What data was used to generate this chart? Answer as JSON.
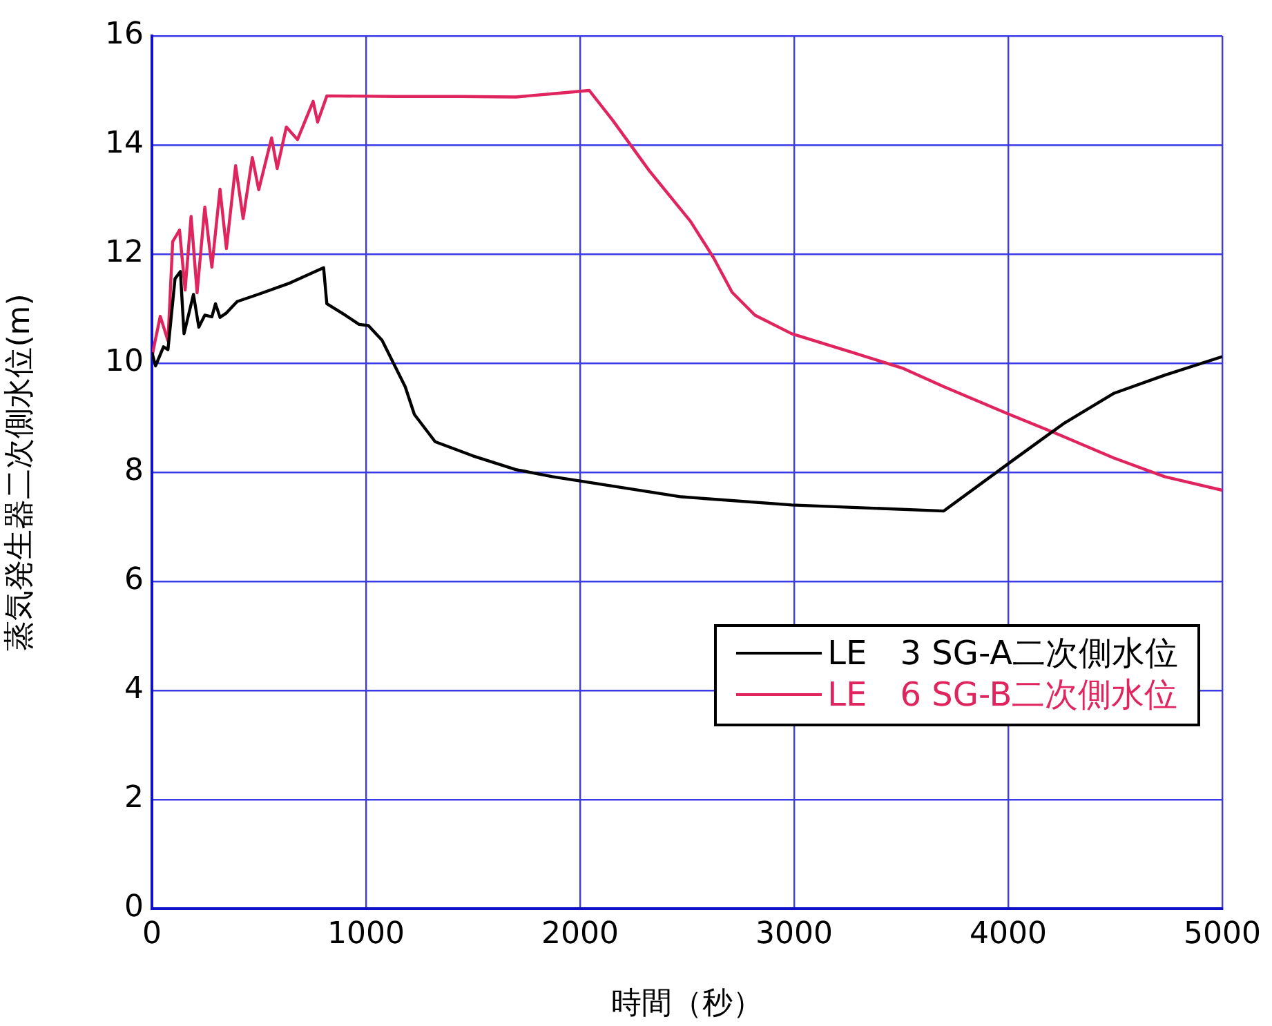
{
  "chart_data": {
    "type": "line",
    "xlabel": "時間（秒）",
    "ylabel": "蒸気発生器二次側水位(m)",
    "xlim": [
      0,
      5000
    ],
    "xticks": [
      0,
      1000,
      2000,
      3000,
      4000,
      5000
    ],
    "ylim": [
      0,
      16
    ],
    "yticks": [
      0,
      2,
      4,
      6,
      8,
      10,
      12,
      14,
      16
    ],
    "grid": true,
    "legend": "bottom right",
    "line_style": "solid",
    "marker": "none",
    "series": [
      {
        "name": "LE　3 SG-A二次側水位",
        "color": "#000000",
        "x": [
          0,
          17,
          54,
          75,
          108,
          133,
          150,
          194,
          219,
          247,
          280,
          297,
          318,
          348,
          398,
          495,
          645,
          802,
          817,
          903,
          968,
          1011,
          1075,
          1183,
          1226,
          1323,
          1500,
          1700,
          1871,
          2000,
          2473,
          2989,
          3699,
          4022,
          4258,
          4495,
          4731,
          5000
        ],
        "values": [
          10.2,
          9.95,
          10.3,
          10.25,
          11.55,
          11.68,
          10.54,
          11.26,
          10.66,
          10.88,
          10.85,
          11.09,
          10.84,
          10.92,
          11.13,
          11.26,
          11.47,
          11.75,
          11.09,
          10.88,
          10.71,
          10.69,
          10.42,
          9.57,
          9.06,
          8.56,
          8.3,
          8.05,
          7.92,
          7.84,
          7.55,
          7.4,
          7.29,
          8.22,
          8.89,
          9.45,
          9.78,
          10.12
        ]
      },
      {
        "name": "LE　6 SG-B二次側水位",
        "color": "#e0245e",
        "x": [
          0,
          11,
          39,
          75,
          97,
          129,
          155,
          183,
          211,
          247,
          280,
          318,
          348,
          391,
          426,
          469,
          499,
          559,
          585,
          628,
          680,
          753,
          774,
          817,
          1140,
          1441,
          1700,
          1900,
          2043,
          2151,
          2323,
          2516,
          2624,
          2710,
          2817,
          2989,
          3269,
          3505,
          3699,
          4000,
          4237,
          4495,
          4731,
          5000
        ],
        "values": [
          10.1,
          10.33,
          10.86,
          10.41,
          12.23,
          12.44,
          11.34,
          12.69,
          11.29,
          12.86,
          11.76,
          13.19,
          12.1,
          13.62,
          12.65,
          13.77,
          13.18,
          14.13,
          13.57,
          14.33,
          14.1,
          14.8,
          14.42,
          14.9,
          14.89,
          14.89,
          14.88,
          14.95,
          15.0,
          14.46,
          13.53,
          12.6,
          11.93,
          11.3,
          10.88,
          10.54,
          10.2,
          9.91,
          9.57,
          9.07,
          8.69,
          8.26,
          7.92,
          7.67
        ]
      }
    ]
  }
}
